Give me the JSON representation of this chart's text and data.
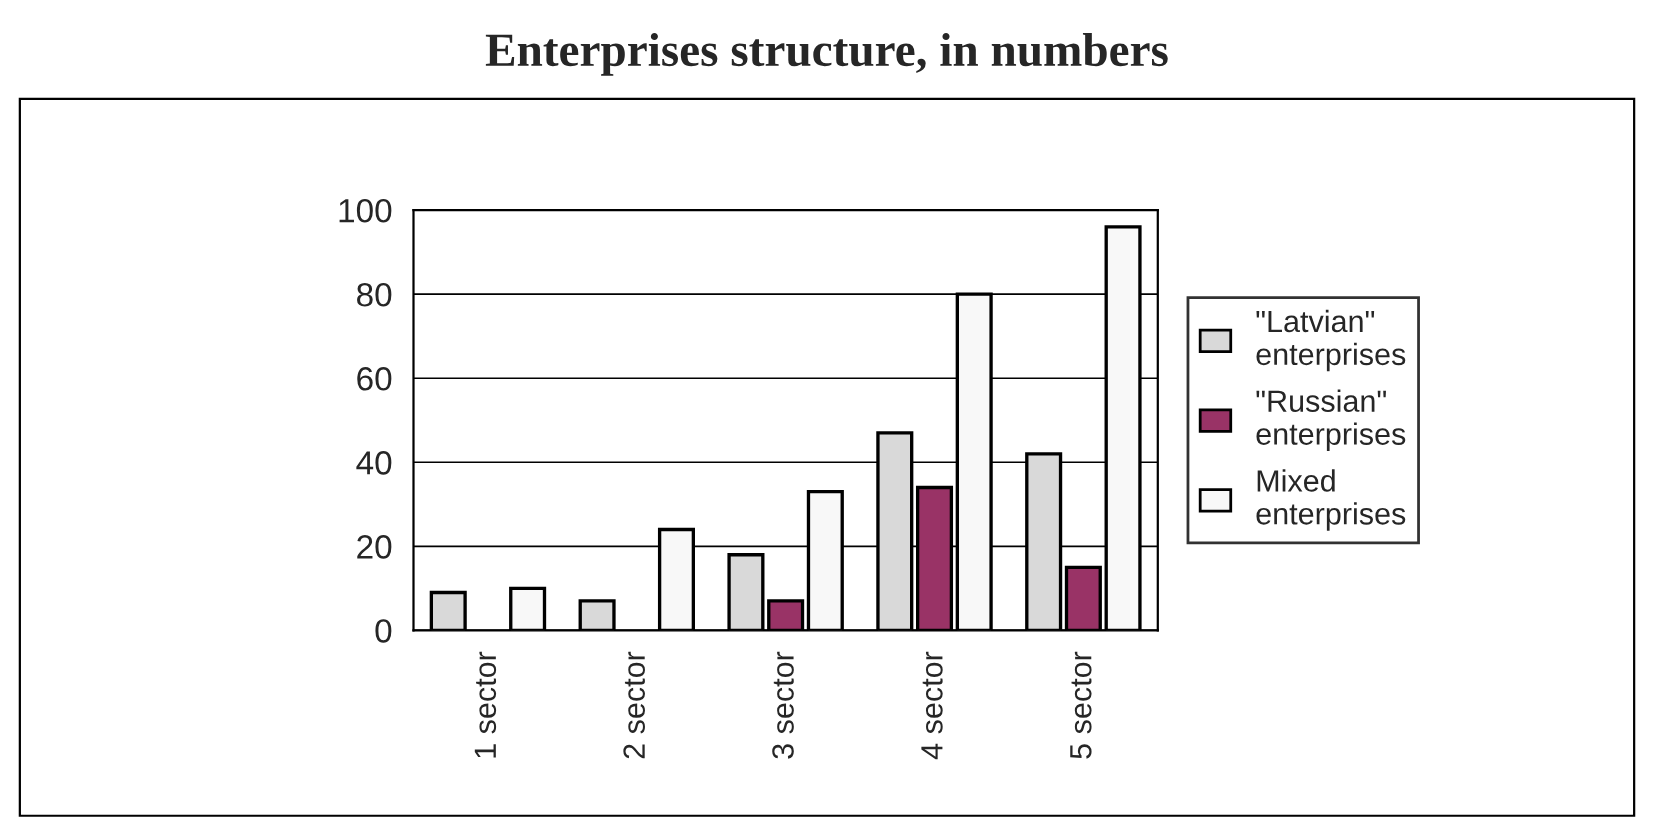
{
  "chart_data": {
    "type": "bar",
    "title": "Enterprises structure, in numbers",
    "categories": [
      "1 sector",
      "2 sector",
      "3 sector",
      "4 sector",
      "5 sector"
    ],
    "series": [
      {
        "name": "\"Latvian\" enterprises",
        "color": "#d9d9d9",
        "values": [
          9,
          7,
          18,
          47,
          42
        ]
      },
      {
        "name": "\"Russian\" enterprises",
        "color": "#993366",
        "values": [
          null,
          null,
          7,
          34,
          15
        ]
      },
      {
        "name": "Mixed enterprises",
        "color": "#f8f8f8",
        "values": [
          10,
          24,
          33,
          80,
          96
        ]
      }
    ],
    "ylim": [
      0,
      100
    ],
    "yticks": [
      0,
      20,
      40,
      60,
      80,
      100
    ],
    "grid": "y",
    "legend": "right"
  }
}
